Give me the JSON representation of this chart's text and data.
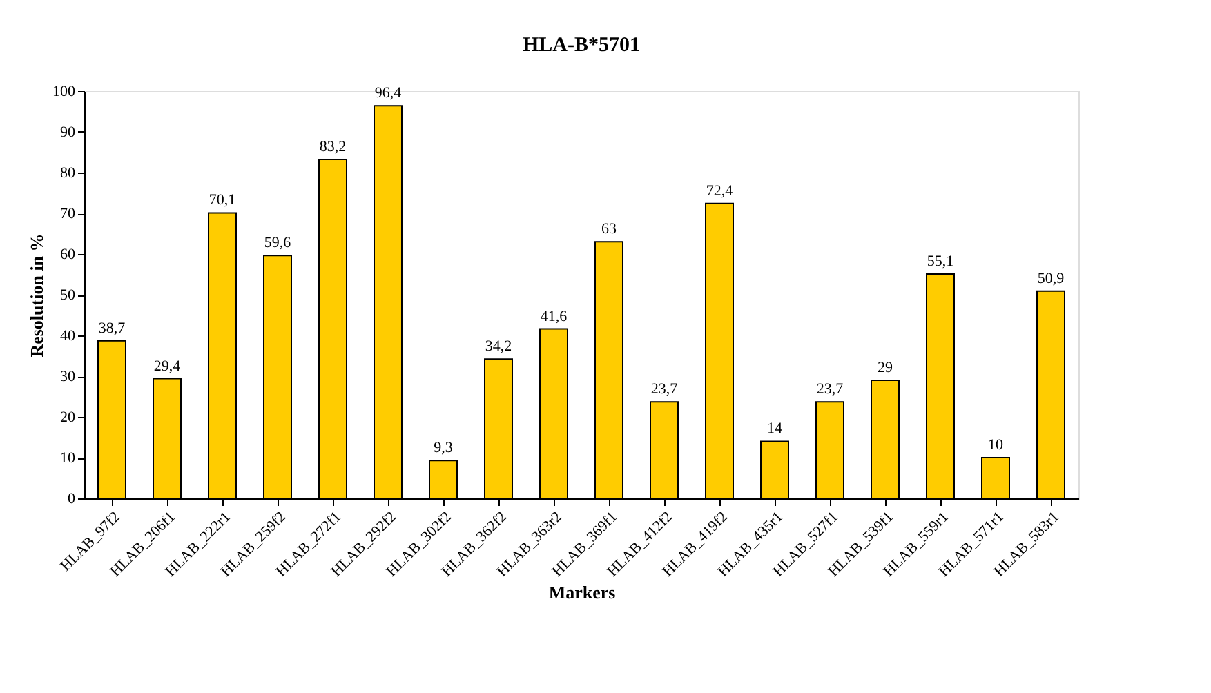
{
  "chart_data": {
    "type": "bar",
    "title": "HLA-B*5701",
    "xlabel": "Markers",
    "ylabel": "Resolution in %",
    "categories": [
      "HLAB_97f2",
      "HLAB_206f1",
      "HLAB_222r1",
      "HLAB_259f2",
      "HLAB_272f1",
      "HLAB_292f2",
      "HLAB_302f2",
      "HLAB_362f2",
      "HLAB_363r2",
      "HLAB_369f1",
      "HLAB_412f2",
      "HLAB_419f2",
      "HLAB_435r1",
      "HLAB_527f1",
      "HLAB_539f1",
      "HLAB_559r1",
      "HLAB_571r1",
      "HLAB_583r1"
    ],
    "values": [
      38.7,
      29.4,
      70.1,
      59.6,
      83.2,
      96.4,
      9.3,
      34.2,
      41.6,
      63,
      23.7,
      72.4,
      14,
      23.7,
      29,
      55.1,
      10,
      50.9
    ],
    "value_labels": [
      "38,7",
      "29,4",
      "70,1",
      "59,6",
      "83,2",
      "96,4",
      "9,3",
      "34,2",
      "41,6",
      "63",
      "23,7",
      "72,4",
      "14",
      "23,7",
      "29",
      "55,1",
      "10",
      "50,9"
    ],
    "color": "#ffcc00",
    "ylim": [
      0,
      100
    ],
    "yticks": [
      0,
      10,
      20,
      30,
      40,
      50,
      60,
      70,
      80,
      90,
      100
    ],
    "grid": false
  }
}
